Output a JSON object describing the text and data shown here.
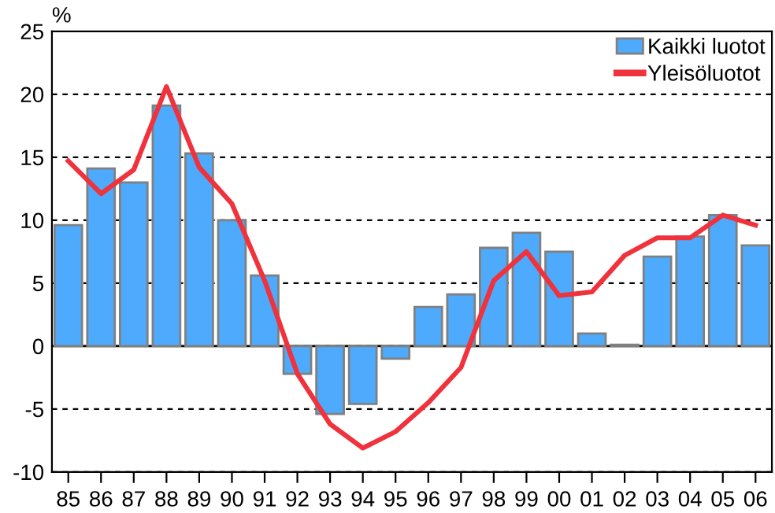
{
  "chart_data": {
    "type": "bar",
    "ylabel": "%",
    "categories": [
      "85",
      "86",
      "87",
      "88",
      "89",
      "90",
      "91",
      "92",
      "93",
      "94",
      "95",
      "96",
      "97",
      "98",
      "99",
      "00",
      "01",
      "02",
      "03",
      "04",
      "05",
      "06"
    ],
    "series": [
      {
        "name": "Kaikki luotot",
        "color": "#4daafc",
        "values": [
          9.6,
          14.1,
          13.0,
          19.1,
          15.3,
          10.0,
          5.6,
          -2.2,
          -5.4,
          -4.6,
          -1.0,
          3.1,
          4.1,
          7.8,
          9.0,
          7.5,
          1.0,
          0.1,
          7.1,
          8.7,
          10.4,
          8.0
        ]
      },
      {
        "name": "Yleisöluotot",
        "type": "line",
        "color": "#f0323c",
        "values": [
          14.7,
          12.1,
          14.0,
          20.6,
          14.2,
          11.3,
          5.2,
          -2.2,
          -6.2,
          -8.1,
          -6.8,
          -4.5,
          -1.7,
          5.2,
          7.5,
          4.0,
          4.3,
          7.2,
          8.6,
          8.6,
          10.4,
          9.6
        ]
      }
    ],
    "ylim": [
      -10,
      25
    ],
    "yticks": [
      -10,
      -5,
      0,
      5,
      10,
      15,
      20,
      25
    ],
    "ref_lines": [
      {
        "axis": "y",
        "value": 0,
        "color": "#000000",
        "line_style": "solid"
      }
    ],
    "grid": "y",
    "legend": "top right",
    "marker": "none",
    "line_style": "solid"
  }
}
